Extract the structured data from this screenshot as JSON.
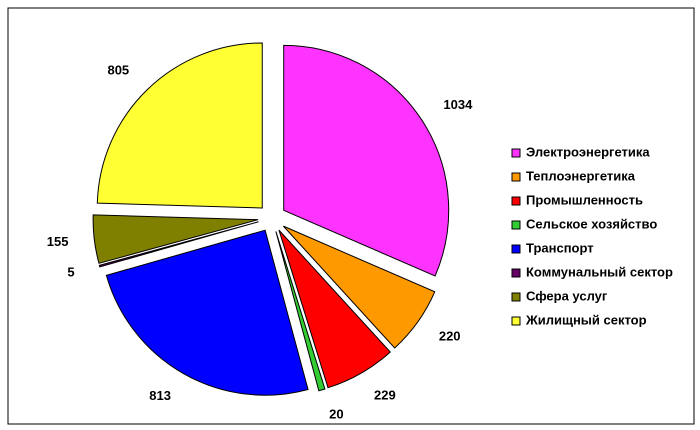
{
  "chart_data": {
    "type": "pie",
    "categories": [
      "Электроэнергетика",
      "Теплоэнергетика",
      "Промышленность",
      "Сельское хозяйство",
      "Транспорт",
      "Коммунальный сектор",
      "Сфера услуг",
      "Жилищный сектор"
    ],
    "values": [
      1034,
      220,
      229,
      20,
      813,
      5,
      155,
      805
    ],
    "colors": [
      "#FF33FF",
      "#FF9900",
      "#FF0000",
      "#33CC33",
      "#0000FF",
      "#660066",
      "#808000",
      "#FFFF33"
    ],
    "legend": "right"
  }
}
